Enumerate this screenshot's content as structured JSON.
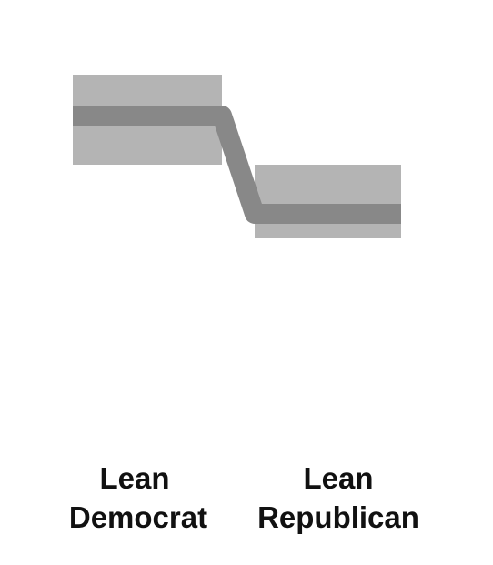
{
  "chart_data": {
    "type": "line",
    "title": "",
    "xlabel": "",
    "ylabel": "",
    "ylim": [
      0,
      100
    ],
    "categories": [
      {
        "id": "dem",
        "label_line1": "Lean",
        "label_line2": "Democrat"
      },
      {
        "id": "rep",
        "label_line1": "Lean",
        "label_line2": "Republican"
      }
    ],
    "series": [
      {
        "name": "value",
        "values": [
          {
            "mid": 74,
            "low": 62,
            "high": 84
          },
          {
            "mid": 50,
            "low": 44,
            "high": 62
          }
        ]
      }
    ],
    "colors": {
      "band": "#b4b4b4",
      "line": "#888888",
      "label": "#111111"
    }
  }
}
